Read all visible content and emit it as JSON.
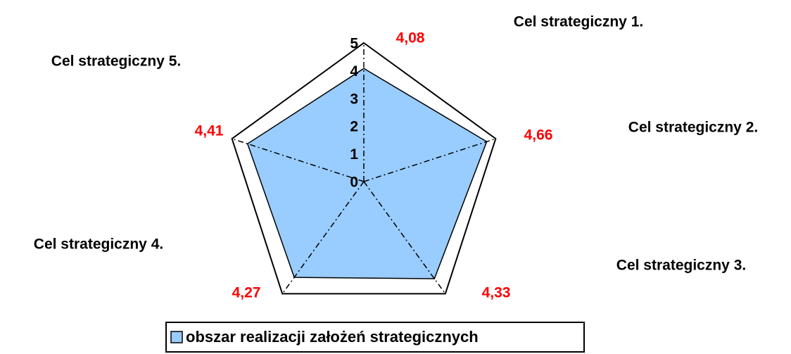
{
  "chart_data": {
    "type": "radar",
    "categories": [
      "Cel strategiczny 1.",
      "Cel strategiczny 2.",
      "Cel strategiczny 3.",
      "Cel strategiczny 4.",
      "Cel strategiczny 5."
    ],
    "series": [
      {
        "name": "obszar realizacji założeń strategicznych",
        "color": "#99ccff",
        "values": [
          4.08,
          4.66,
          4.33,
          4.27,
          4.41
        ],
        "value_labels": [
          "4,08",
          "4,66",
          "4,33",
          "4,27",
          "4,41"
        ]
      }
    ],
    "ylim": [
      0,
      5
    ],
    "yticks": [
      0,
      1,
      2,
      3,
      4,
      5
    ],
    "legend": "bottom"
  }
}
